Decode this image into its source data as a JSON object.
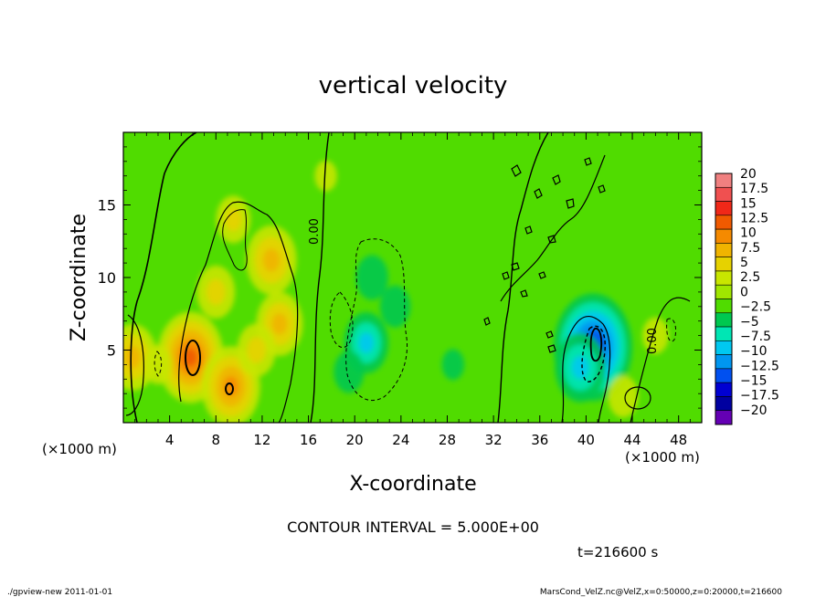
{
  "chart_data": {
    "type": "heatmap",
    "title": "vertical velocity",
    "xlabel": "X-coordinate",
    "ylabel": "Z-coordinate",
    "x_unit_label": "(×1000 m)",
    "y_unit_label": "(×1000 m)",
    "xlim": [
      0,
      50
    ],
    "ylim": [
      0,
      20
    ],
    "x_ticks": [
      4,
      8,
      12,
      16,
      20,
      24,
      28,
      32,
      36,
      40,
      44,
      48
    ],
    "y_ticks": [
      5,
      10,
      15
    ],
    "colorbar": {
      "levels": [
        -20,
        -17.5,
        -15,
        -12.5,
        -10,
        -7.5,
        -5,
        -2.5,
        0,
        2.5,
        5,
        7.5,
        10,
        12.5,
        15,
        17.5,
        20
      ],
      "labels": [
        "20",
        "17.5",
        "15",
        "12.5",
        "10",
        "7.5",
        "5",
        "2.5",
        "0",
        "−2.5",
        "−5",
        "−7.5",
        "−10",
        "−12.5",
        "−15",
        "−17.5",
        "−20"
      ],
      "colors": [
        "#f08080",
        "#f05050",
        "#f02818",
        "#f05a00",
        "#f58a00",
        "#f0b400",
        "#e6d200",
        "#c8e600",
        "#a0e600",
        "#50dc00",
        "#00c850",
        "#00e6b4",
        "#00c8f0",
        "#0096f0",
        "#0050f0",
        "#0000d2",
        "#0000a0",
        "#6400b4"
      ]
    },
    "contour_interval_label": "CONTOUR INTERVAL = 5.000E+00",
    "zero_contour_label": "0.00",
    "time_label": "t=216600 s",
    "features": [
      {
        "x": 5.8,
        "z": 4.5,
        "w": 12.0
      },
      {
        "x": 9.3,
        "z": 2.5,
        "w": 10.0
      },
      {
        "x": 12.8,
        "z": 11.2,
        "w": 8.0
      },
      {
        "x": 13.5,
        "z": 6.8,
        "w": 7.0
      },
      {
        "x": 11.5,
        "z": 5.0,
        "w": 5.0
      },
      {
        "x": 9.5,
        "z": 14.0,
        "w": 4.0
      },
      {
        "x": 8.0,
        "z": 9.0,
        "w": 5.0
      },
      {
        "x": 0.8,
        "z": 4.5,
        "w": 7.5
      },
      {
        "x": 3.0,
        "z": 4.0,
        "w": 2.5
      },
      {
        "x": 21.0,
        "z": 5.5,
        "w": -6.5
      },
      {
        "x": 21.5,
        "z": 10.0,
        "w": -3.5
      },
      {
        "x": 23.5,
        "z": 8.0,
        "w": -3.0
      },
      {
        "x": 19.5,
        "z": 3.5,
        "w": -3.0
      },
      {
        "x": 28.5,
        "z": 4.0,
        "w": -1.0
      },
      {
        "x": 40.6,
        "z": 5.2,
        "w": -15.0
      },
      {
        "x": 39.5,
        "z": 3.8,
        "w": -8.0
      },
      {
        "x": 43.2,
        "z": 1.8,
        "w": 3.0
      },
      {
        "x": 46.0,
        "z": 6.0,
        "w": 2.0
      },
      {
        "x": 17.5,
        "z": 17.0,
        "w": 1.0
      }
    ]
  },
  "footer": {
    "left": "./gpview-new  2011-01-01",
    "right": "MarsCond_VelZ.nc@VelZ,x=0:50000,z=0:20000,t=216600"
  }
}
